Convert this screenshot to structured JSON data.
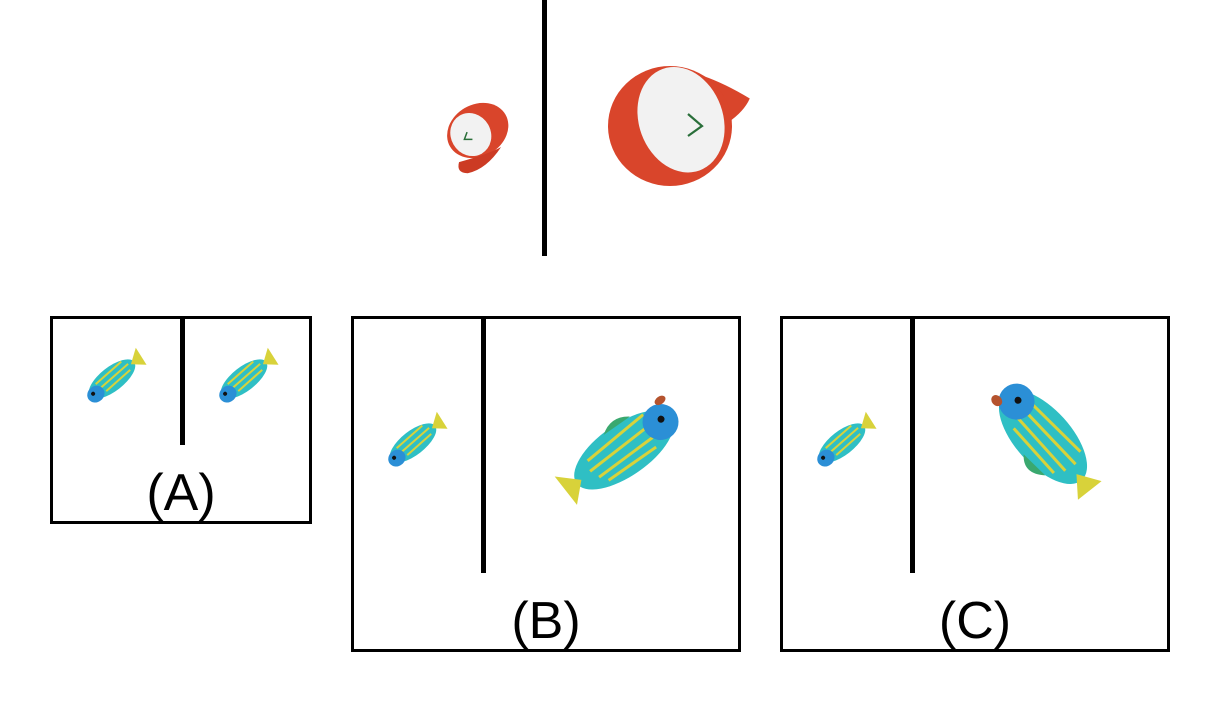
{
  "example": {
    "left_object": "baseball-cap-small",
    "right_object": "baseball-cap-large"
  },
  "options": [
    {
      "label": "(A)"
    },
    {
      "label": "(B)"
    },
    {
      "label": "(C)"
    }
  ],
  "colors": {
    "cap_red": "#d9452b",
    "cap_white": "#f2f2f2",
    "fish_teal": "#2fbfc4",
    "fish_blue": "#2b8fd6",
    "fish_yellow": "#d8d23a",
    "fish_green": "#3aa86f",
    "line": "#000000"
  }
}
